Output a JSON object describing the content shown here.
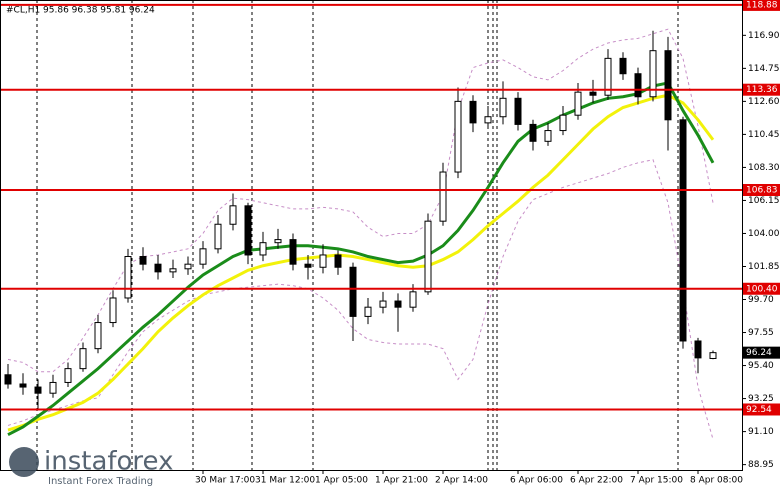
{
  "chart_data": {
    "type": "candlestick",
    "title": "#CL,H1  95.86 96.38 95.81 96.24",
    "categories": [
      null,
      null,
      null,
      null,
      null,
      null,
      null,
      null,
      null,
      null,
      null,
      null,
      null,
      "30 Mar 17:00",
      null,
      null,
      null,
      "31 Mar 12:00",
      null,
      null,
      null,
      "1 Apr 05:00",
      null,
      null,
      null,
      "1 Apr 21:00",
      null,
      null,
      null,
      "2 Apr 14:00",
      null,
      null,
      null,
      null,
      "6 Apr 06:00",
      null,
      null,
      null,
      "6 Apr 22:00",
      null,
      null,
      null,
      "7 Apr 15:00",
      null,
      null,
      null,
      "8 Apr 08:00",
      null
    ],
    "open": [
      94.8,
      94.2,
      94.0,
      93.6,
      94.3,
      95.2,
      96.5,
      98.2,
      99.8,
      102.5,
      102.0,
      101.5,
      101.7,
      102.0,
      103.0,
      104.6,
      105.8,
      102.6,
      103.4,
      103.6,
      102.0,
      101.8,
      102.6,
      101.8,
      98.6,
      99.2,
      99.6,
      99.2,
      100.2,
      104.8,
      108.0,
      112.6,
      111.2,
      111.6,
      112.8,
      111.1,
      110.0,
      110.7,
      111.7,
      113.2,
      113.0,
      115.4,
      114.4,
      112.9,
      115.9,
      111.4,
      97.0,
      95.86
    ],
    "high": [
      95.5,
      94.9,
      94.5,
      94.8,
      95.6,
      96.9,
      98.7,
      100.3,
      103.0,
      103.1,
      102.6,
      102.3,
      102.5,
      103.5,
      105.2,
      106.6,
      106.0,
      104.1,
      104.3,
      104.0,
      102.6,
      103.3,
      102.9,
      102.1,
      99.8,
      100.2,
      100.1,
      100.7,
      105.3,
      108.6,
      113.5,
      113.0,
      112.3,
      113.9,
      113.2,
      111.4,
      111.2,
      112.3,
      113.8,
      114.0,
      116.0,
      115.8,
      114.8,
      117.2,
      116.8,
      111.6,
      97.2,
      96.38
    ],
    "low": [
      93.9,
      93.5,
      92.6,
      93.3,
      94.0,
      95.0,
      96.2,
      97.9,
      99.5,
      101.6,
      101.0,
      101.1,
      101.3,
      101.7,
      102.7,
      104.2,
      102.0,
      102.2,
      103.0,
      101.6,
      101.0,
      101.4,
      101.3,
      97.0,
      98.1,
      98.8,
      97.6,
      98.9,
      100.0,
      104.5,
      107.6,
      110.6,
      110.8,
      111.1,
      110.7,
      109.4,
      109.7,
      110.4,
      111.4,
      112.5,
      112.7,
      114.0,
      112.4,
      112.6,
      109.4,
      96.5,
      94.9,
      95.81
    ],
    "close": [
      94.2,
      94.0,
      93.6,
      94.3,
      95.2,
      96.5,
      98.2,
      99.8,
      102.5,
      102.0,
      101.5,
      101.7,
      102.0,
      103.0,
      104.6,
      105.8,
      102.6,
      103.4,
      103.6,
      102.0,
      101.8,
      102.6,
      101.8,
      98.6,
      99.2,
      99.6,
      99.2,
      100.2,
      104.8,
      108.0,
      112.6,
      111.2,
      111.6,
      112.8,
      111.1,
      110.0,
      110.7,
      111.7,
      113.2,
      113.0,
      115.4,
      114.4,
      112.9,
      115.9,
      111.4,
      97.0,
      95.9,
      96.24
    ],
    "lines": [
      {
        "color": "#c78ec7",
        "width": 1,
        "dashed": true,
        "values": [
          95.8,
          95.6,
          95.0,
          95.0,
          95.8,
          97.2,
          98.7,
          100.4,
          102.0,
          102.5,
          102.6,
          102.8,
          103.0,
          104.0,
          105.5,
          106.3,
          106.2,
          106.0,
          105.8,
          105.6,
          105.6,
          105.7,
          105.6,
          105.4,
          104.4,
          103.8,
          104.0,
          104.0,
          104.6,
          106.5,
          112.0,
          114.8,
          115.1,
          115.3,
          114.8,
          114.2,
          114.0,
          114.6,
          115.4,
          116.0,
          116.4,
          116.6,
          116.7,
          117.0,
          117.3,
          115.4,
          111.0,
          106.0
        ]
      },
      {
        "color": "#c78ec7",
        "width": 1,
        "dashed": true,
        "values": [
          91.5,
          91.8,
          92.2,
          92.5,
          92.8,
          93.1,
          93.3,
          94.8,
          96.3,
          97.6,
          98.4,
          99.0,
          99.6,
          100.0,
          100.2,
          100.4,
          100.5,
          100.6,
          100.7,
          100.6,
          100.4,
          99.8,
          99.0,
          97.8,
          97.1,
          96.9,
          96.8,
          96.8,
          96.8,
          96.5,
          94.5,
          95.8,
          99.4,
          102.5,
          104.8,
          106.2,
          106.6,
          107.0,
          107.3,
          107.6,
          107.9,
          108.3,
          108.6,
          108.8,
          106.0,
          100.5,
          94.0,
          90.6
        ]
      },
      {
        "color": "#f2f20a",
        "width": 3,
        "dashed": false,
        "values": [
          91.2,
          91.5,
          91.9,
          92.2,
          92.6,
          93.0,
          93.6,
          94.5,
          95.5,
          96.5,
          97.6,
          98.5,
          99.3,
          100.0,
          100.6,
          101.1,
          101.6,
          101.9,
          102.1,
          102.3,
          102.4,
          102.5,
          102.6,
          102.5,
          102.3,
          102.1,
          101.9,
          101.8,
          101.9,
          102.3,
          102.8,
          103.6,
          104.5,
          105.3,
          106.1,
          107.0,
          107.8,
          108.8,
          109.8,
          110.8,
          111.6,
          112.2,
          112.5,
          112.8,
          113.0,
          112.5,
          111.4,
          110.1
        ]
      },
      {
        "color": "#1a8c1a",
        "width": 3,
        "dashed": false,
        "values": [
          90.9,
          91.4,
          92.1,
          92.8,
          93.6,
          94.4,
          95.2,
          96.1,
          97.0,
          97.9,
          98.7,
          99.6,
          100.5,
          101.3,
          101.9,
          102.5,
          102.9,
          103.0,
          103.1,
          103.2,
          103.2,
          103.1,
          103.0,
          102.8,
          102.5,
          102.3,
          102.1,
          102.2,
          102.6,
          103.2,
          104.2,
          105.5,
          107.0,
          108.6,
          110.0,
          110.8,
          111.2,
          111.7,
          112.1,
          112.5,
          112.8,
          112.9,
          113.1,
          113.6,
          113.8,
          112.0,
          110.4,
          108.6
        ]
      }
    ],
    "levels": [
      118.88,
      113.36,
      106.83,
      {
        "value": 100.4,
        "label": "100.40"
      },
      92.54
    ],
    "level_color": "#e00000",
    "ylim": [
      88.6,
      119.2
    ],
    "yticks": [
      88.95,
      {
        "value": 91.1,
        "label": "91.10"
      },
      93.25,
      {
        "value": 95.4,
        "label": "95.40"
      },
      97.55,
      {
        "value": 99.7,
        "label": "99.70"
      },
      101.85,
      {
        "value": 104,
        "label": "104.00"
      },
      106.15,
      {
        "value": 108.3,
        "label": "108.30"
      },
      110.45,
      {
        "value": 112.6,
        "label": "112.60"
      },
      114.75,
      {
        "value": 116.9,
        "label": "116.90"
      }
    ]
  },
  "watermark": {
    "brand": "instaforex",
    "tagline": "Instant Forex Trading"
  }
}
